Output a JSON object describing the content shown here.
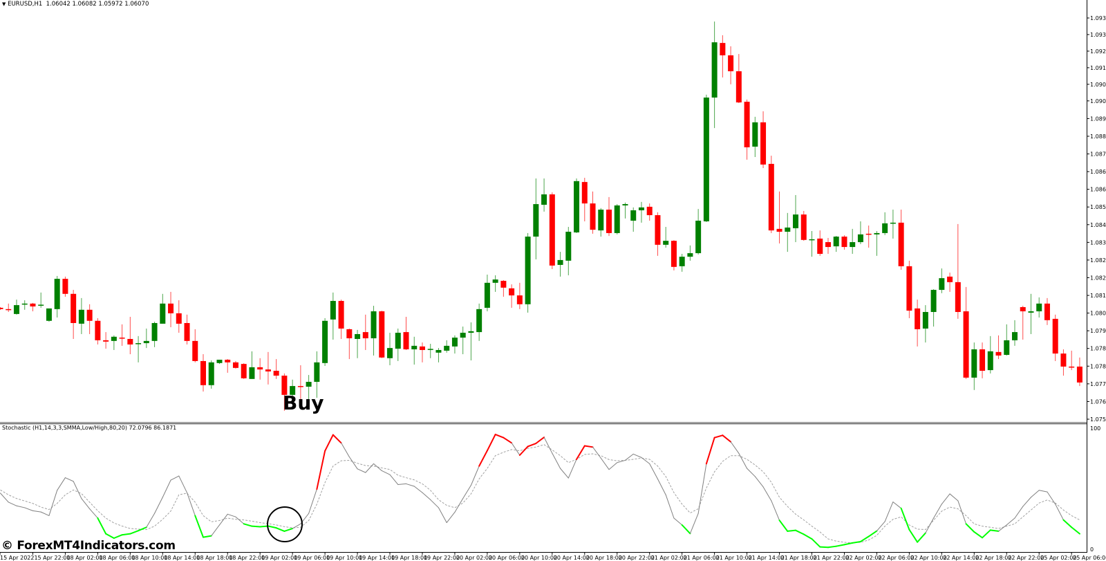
{
  "header": {
    "dropdown_icon": "triangle-down-icon",
    "symbol_info": "EURUSD,H1  1.06042 1.06082 1.05972 1.06070"
  },
  "indicator": {
    "label": "Stochastic (H1,14,3,3,SMMA,Low/High,80,20) 72.0796 86.1871",
    "axis_top": "100",
    "axis_bottom": "0"
  },
  "annotation": {
    "buy_label": "Buy",
    "circle_marker": "circle-highlight"
  },
  "watermark": "© ForexMT4Indicators.com",
  "colors": {
    "bull": "#008000",
    "bear": "#ff0000",
    "main_line": "#808080",
    "overbought": "#ff0000",
    "oversold": "#00ff00",
    "signal_line": "#a0a0a0"
  },
  "price_axis": [
    "1.09380",
    "1.09305",
    "1.09230",
    "1.09155",
    "1.09080",
    "1.09005",
    "1.08925",
    "1.08845",
    "1.08765",
    "1.08685",
    "1.08605",
    "1.08525",
    "1.08445",
    "1.08365",
    "1.08285",
    "1.08205",
    "1.08125",
    "1.08045",
    "1.07965",
    "1.07885",
    "1.07805",
    "1.07725",
    "1.07645",
    "1.07565"
  ],
  "time_axis": [
    "15 Apr 2022",
    "15 Apr 22:00",
    "18 Apr 02:00",
    "18 Apr 06:00",
    "18 Apr 10:00",
    "18 Apr 14:00",
    "18 Apr 18:00",
    "18 Apr 22:00",
    "19 Apr 02:00",
    "19 Apr 06:00",
    "19 Apr 10:00",
    "19 Apr 14:00",
    "19 Apr 18:00",
    "19 Apr 22:00",
    "20 Apr 02:00",
    "20 Apr 06:00",
    "20 Apr 10:00",
    "20 Apr 14:00",
    "20 Apr 18:00",
    "20 Apr 22:00",
    "21 Apr 02:00",
    "21 Apr 06:00",
    "21 Apr 10:00",
    "21 Apr 14:00",
    "21 Apr 18:00",
    "21 Apr 22:00",
    "22 Apr 02:00",
    "22 Apr 06:00",
    "22 Apr 10:00",
    "22 Apr 14:00",
    "22 Apr 18:00",
    "22 Apr 22:00",
    "25 Apr 02:00",
    "25 Apr 06:00"
  ],
  "chart_data": [
    {
      "type": "candlestick",
      "title": "EURUSD,H1",
      "ylim": [
        1.07565,
        1.0938
      ],
      "grid": false,
      "fields": [
        "open",
        "high",
        "low",
        "close"
      ],
      "candles": [
        [
          1.08069,
          1.08072,
          1.0806,
          1.08063
        ],
        [
          1.08063,
          1.08088,
          1.0805,
          1.0806
        ],
        [
          1.08041,
          1.08106,
          1.08038,
          1.08081
        ],
        [
          1.08085,
          1.08103,
          1.0806,
          1.08088
        ],
        [
          1.08088,
          1.08091,
          1.08053,
          1.08075
        ],
        [
          1.08081,
          1.08138,
          1.08069,
          1.08083
        ],
        [
          1.0801,
          1.08066,
          1.08006,
          1.08066
        ],
        [
          1.08063,
          1.08213,
          1.08025,
          1.082
        ],
        [
          1.082,
          1.0821,
          1.08119,
          1.08132
        ],
        [
          1.08132,
          1.0815,
          1.07928,
          1.08
        ],
        [
          1.07997,
          1.08113,
          1.0795,
          1.0806
        ],
        [
          1.0806,
          1.08085,
          1.0795,
          1.0801
        ],
        [
          1.0801,
          1.08022,
          1.07903,
          1.07922
        ],
        [
          1.07922,
          1.07959,
          1.07884,
          1.07916
        ],
        [
          1.07919,
          1.07944,
          1.07878,
          1.07938
        ],
        [
          1.07934,
          1.07994,
          1.07897,
          1.07931
        ],
        [
          1.07928,
          1.08028,
          1.07859,
          1.07903
        ],
        [
          1.07906,
          1.07941,
          1.07822,
          1.07909
        ],
        [
          1.07909,
          1.07975,
          1.07887,
          1.07919
        ],
        [
          1.07919,
          1.08006,
          1.07891,
          1.08
        ],
        [
          1.07997,
          1.08132,
          1.07997,
          1.08088
        ],
        [
          1.08088,
          1.08141,
          1.07981,
          1.08044
        ],
        [
          1.08044,
          1.08103,
          1.07956,
          1.07997
        ],
        [
          1.08,
          1.08038,
          1.07903,
          1.07919
        ],
        [
          1.07919,
          1.07972,
          1.07822,
          1.07828
        ],
        [
          1.07828,
          1.07859,
          1.0769,
          1.07719
        ],
        [
          1.07719,
          1.07831,
          1.07703,
          1.07822
        ],
        [
          1.07819,
          1.07834,
          1.07815,
          1.07834
        ],
        [
          1.07834,
          1.07837,
          1.07775,
          1.07822
        ],
        [
          1.07822,
          1.07828,
          1.07794,
          1.07797
        ],
        [
          1.07815,
          1.07818,
          1.07747,
          1.0775
        ],
        [
          1.07747,
          1.07872,
          1.07747,
          1.078
        ],
        [
          1.078,
          1.07841,
          1.07744,
          1.0779
        ],
        [
          1.0779,
          1.07869,
          1.07722,
          1.07781
        ],
        [
          1.07784,
          1.07837,
          1.07747,
          1.07762
        ],
        [
          1.07762,
          1.07772,
          1.07603,
          1.07675
        ],
        [
          1.07675,
          1.07744,
          1.07662,
          1.07715
        ],
        [
          1.07715,
          1.07809,
          1.07656,
          1.07712
        ],
        [
          1.07712,
          1.07765,
          1.07656,
          1.07734
        ],
        [
          1.07734,
          1.07872,
          1.07662,
          1.07822
        ],
        [
          1.07819,
          1.08022,
          1.07806,
          1.0801
        ],
        [
          1.08016,
          1.08138,
          1.07925,
          1.081
        ],
        [
          1.081,
          1.08106,
          1.07928,
          1.07975
        ],
        [
          1.07972,
          1.07975,
          1.07837,
          1.07931
        ],
        [
          1.07928,
          1.07969,
          1.07841,
          1.0795
        ],
        [
          1.07959,
          1.08038,
          1.07878,
          1.07931
        ],
        [
          1.07931,
          1.08078,
          1.07853,
          1.08053
        ],
        [
          1.08053,
          1.08056,
          1.07841,
          1.07844
        ],
        [
          1.07841,
          1.07956,
          1.07809,
          1.07887
        ],
        [
          1.07884,
          1.07975,
          1.07828,
          1.07956
        ],
        [
          1.07959,
          1.08028,
          1.07878,
          1.07881
        ],
        [
          1.07881,
          1.07938,
          1.07812,
          1.07897
        ],
        [
          1.07894,
          1.07912,
          1.07822,
          1.07878
        ],
        [
          1.07881,
          1.07906,
          1.07841,
          1.07883
        ],
        [
          1.07866,
          1.07887,
          1.07822,
          1.07878
        ],
        [
          1.07875,
          1.07922,
          1.07866,
          1.07897
        ],
        [
          1.07894,
          1.07944,
          1.07862,
          1.07934
        ],
        [
          1.07934,
          1.07984,
          1.07859,
          1.07956
        ],
        [
          1.07956,
          1.08003,
          1.07831,
          1.07963
        ],
        [
          1.07959,
          1.08088,
          1.07919,
          1.08063
        ],
        [
          1.08069,
          1.08219,
          1.08053,
          1.08182
        ],
        [
          1.08182,
          1.08216,
          1.08141,
          1.08197
        ],
        [
          1.08191,
          1.08194,
          1.08119,
          1.0816
        ],
        [
          1.08157,
          1.08175,
          1.08069,
          1.08125
        ],
        [
          1.08125,
          1.08182,
          1.08063,
          1.08085
        ],
        [
          1.08085,
          1.08407,
          1.08047,
          1.08391
        ],
        [
          1.08391,
          1.08654,
          1.08288,
          1.08538
        ],
        [
          1.08535,
          1.08654,
          1.08504,
          1.08582
        ],
        [
          1.08582,
          1.08591,
          1.08244,
          1.0826
        ],
        [
          1.08263,
          1.08322,
          1.0821,
          1.08285
        ],
        [
          1.08282,
          1.08435,
          1.08216,
          1.08413
        ],
        [
          1.0841,
          1.08654,
          1.08407,
          1.08642
        ],
        [
          1.08638,
          1.08657,
          1.0846,
          1.08541
        ],
        [
          1.08541,
          1.08595,
          1.08404,
          1.08422
        ],
        [
          1.08419,
          1.0852,
          1.08391,
          1.08513
        ],
        [
          1.08513,
          1.0857,
          1.08394,
          1.08407
        ],
        [
          1.08407,
          1.08538,
          1.08401,
          1.08532
        ],
        [
          1.08532,
          1.08545,
          1.08473,
          1.08538
        ],
        [
          1.08463,
          1.08523,
          1.08413,
          1.0851
        ],
        [
          1.0851,
          1.08548,
          1.08454,
          1.08523
        ],
        [
          1.08526,
          1.08541,
          1.08463,
          1.08488
        ],
        [
          1.08488,
          1.08501,
          1.08304,
          1.08354
        ],
        [
          1.08354,
          1.08435,
          1.08341,
          1.08372
        ],
        [
          1.08372,
          1.08375,
          1.08238,
          1.08254
        ],
        [
          1.08257,
          1.08313,
          1.08232,
          1.083
        ],
        [
          1.083,
          1.08351,
          1.08282,
          1.08316
        ],
        [
          1.08316,
          1.08516,
          1.0831,
          1.08463
        ],
        [
          1.0846,
          1.09033,
          1.08457,
          1.0902
        ],
        [
          1.0902,
          1.09364,
          1.08882,
          1.0927
        ],
        [
          1.09267,
          1.09302,
          1.09111,
          1.09211
        ],
        [
          1.09211,
          1.09252,
          1.0908,
          1.09139
        ],
        [
          1.09139,
          1.09217,
          1.08995,
          1.08998
        ],
        [
          1.09001,
          1.09011,
          1.08739,
          1.08795
        ],
        [
          1.08798,
          1.08933,
          1.08751,
          1.08908
        ],
        [
          1.08908,
          1.08958,
          1.08701,
          1.08717
        ],
        [
          1.0872,
          1.08757,
          1.08407,
          1.08419
        ],
        [
          1.08426,
          1.08595,
          1.0836,
          1.08413
        ],
        [
          1.08413,
          1.08498,
          1.08322,
          1.08432
        ],
        [
          1.08429,
          1.08579,
          1.08366,
          1.08491
        ],
        [
          1.08491,
          1.08507,
          1.08372,
          1.08376
        ],
        [
          1.08376,
          1.08416,
          1.083,
          1.08379
        ],
        [
          1.08382,
          1.08419,
          1.08304,
          1.08313
        ],
        [
          1.08366,
          1.08385,
          1.08313,
          1.08344
        ],
        [
          1.08347,
          1.08394,
          1.08322,
          1.08391
        ],
        [
          1.08391,
          1.08397,
          1.08332,
          1.08344
        ],
        [
          1.08344,
          1.08426,
          1.08313,
          1.08366
        ],
        [
          1.08366,
          1.0846,
          1.08357,
          1.08401
        ],
        [
          1.08404,
          1.08441,
          1.08341,
          1.08401
        ],
        [
          1.08401,
          1.08416,
          1.08304,
          1.08407
        ],
        [
          1.08407,
          1.08501,
          1.08398,
          1.08451
        ],
        [
          1.08451,
          1.08513,
          1.08382,
          1.08454
        ],
        [
          1.08454,
          1.08513,
          1.08241,
          1.08257
        ],
        [
          1.08257,
          1.08282,
          1.08022,
          1.08056
        ],
        [
          1.08066,
          1.08106,
          1.07894,
          1.07972
        ],
        [
          1.07975,
          1.08081,
          1.07912,
          1.0805
        ],
        [
          1.0805,
          1.08153,
          1.07984,
          1.0815
        ],
        [
          1.0815,
          1.08247,
          1.08135,
          1.08203
        ],
        [
          1.0821,
          1.08228,
          1.08141,
          1.08185
        ],
        [
          1.08185,
          1.08448,
          1.08019,
          1.0805
        ],
        [
          1.08053,
          1.08163,
          1.07747,
          1.07753
        ],
        [
          1.07753,
          1.07912,
          1.07697,
          1.07881
        ],
        [
          1.07881,
          1.07912,
          1.0775,
          1.07784
        ],
        [
          1.07787,
          1.07941,
          1.07772,
          1.07872
        ],
        [
          1.07869,
          1.07944,
          1.07837,
          1.07853
        ],
        [
          1.07856,
          1.07994,
          1.07853,
          1.07922
        ],
        [
          1.07922,
          1.08013,
          1.07897,
          1.07959
        ],
        [
          1.08072,
          1.08078,
          1.07925,
          1.08053
        ],
        [
          1.08047,
          1.08132,
          1.0795,
          1.08053
        ],
        [
          1.08053,
          1.08116,
          1.08025,
          1.08088
        ],
        [
          1.08088,
          1.08113,
          1.07991,
          1.08013
        ],
        [
          1.08019,
          1.08038,
          1.07828,
          1.07862
        ],
        [
          1.07862,
          1.07881,
          1.07762,
          1.07803
        ],
        [
          1.07803,
          1.07875,
          1.07787,
          1.078
        ],
        [
          1.07803,
          1.07844,
          1.07715,
          1.07731
        ]
      ]
    },
    {
      "type": "line",
      "title": "Stochastic (H1,14,3,3,SMMA,Low/High,80,20)",
      "ylim": [
        0,
        100
      ],
      "levels": [
        20,
        80
      ],
      "series": [
        {
          "values": [
            46.4,
            39,
            36,
            34.5,
            32,
            31,
            28,
            48.7,
            59,
            56,
            42,
            33.6,
            26,
            13.2,
            9.6,
            12.3,
            13.2,
            15.7,
            18.5,
            29.8,
            43,
            57,
            60.4,
            46.8,
            28,
            10.4,
            11.5,
            20.4,
            29.2,
            27,
            21.3,
            19.4,
            18.9,
            19.5,
            18,
            15.3,
            17.5,
            21.3,
            29.8,
            49.6,
            80.8,
            94,
            87.4,
            76,
            66.2,
            63.2,
            70.4,
            64.7,
            61.5,
            53.4,
            54,
            52,
            46.8,
            41,
            34.5,
            22.3,
            30.8,
            42,
            52.8,
            68.5,
            81.1,
            94.3,
            91.7,
            87.4,
            77.4,
            84.5,
            87,
            92,
            79,
            66.6,
            58.7,
            74,
            85,
            84,
            75,
            65.7,
            71.3,
            73.2,
            78.3,
            75.5,
            70.4,
            58,
            45,
            26,
            20.4,
            13.4,
            29.8,
            70.4,
            91.7,
            93.6,
            88.3,
            78.9,
            66.6,
            60,
            51.5,
            40.2,
            24.2,
            15.3,
            16,
            12.8,
            9,
            2.5,
            2.1,
            3,
            4.3,
            5.7,
            6.8,
            11,
            15.5,
            23.2,
            39.2,
            34,
            16.6,
            6.4,
            13.8,
            26,
            37.4,
            45.8,
            40.2,
            21.3,
            14.7,
            10,
            16.2,
            15.3,
            20.4,
            26,
            35.5,
            43,
            48.7,
            47.4,
            37.4,
            24.5,
            18.5,
            13.2
          ]
        },
        {
          "values": [
            49,
            45,
            42,
            40,
            38,
            35,
            33,
            38,
            45,
            49,
            46,
            39,
            32,
            26,
            22,
            19.5,
            17.5,
            17,
            16.6,
            19.4,
            25,
            31.7,
            45,
            46.4,
            39,
            28,
            23,
            24,
            26,
            25,
            24.5,
            23.5,
            22.3,
            21.5,
            20.4,
            19,
            18,
            18.5,
            24,
            37.4,
            55,
            68.5,
            72.8,
            73.2,
            70.8,
            68.9,
            68.5,
            67,
            65.7,
            61,
            59,
            57.2,
            54,
            48.7,
            41,
            36.4,
            34.5,
            38.3,
            45.8,
            58,
            66.6,
            77,
            79.8,
            82,
            81,
            83,
            84,
            86,
            81.7,
            77,
            71.3,
            74,
            78,
            78.5,
            77,
            73.8,
            72.8,
            73.2,
            74,
            75,
            74,
            68.5,
            60,
            46.8,
            37.4,
            30.2,
            33.6,
            50.6,
            63.8,
            72.3,
            77,
            77,
            74,
            69.4,
            63.8,
            55.3,
            43,
            35.5,
            29.2,
            24.5,
            19.4,
            14.7,
            9,
            7.2,
            6.2,
            5.7,
            6.2,
            8.1,
            11.9,
            19.4,
            25,
            27,
            20.4,
            17,
            16.6,
            24.2,
            31.7,
            35,
            33.6,
            28,
            21.3,
            19.4,
            18.5,
            17.5,
            19.4,
            21.3,
            27,
            32.6,
            38.3,
            40.8,
            38.3,
            32.6,
            28,
            24.5
          ]
        }
      ]
    }
  ]
}
